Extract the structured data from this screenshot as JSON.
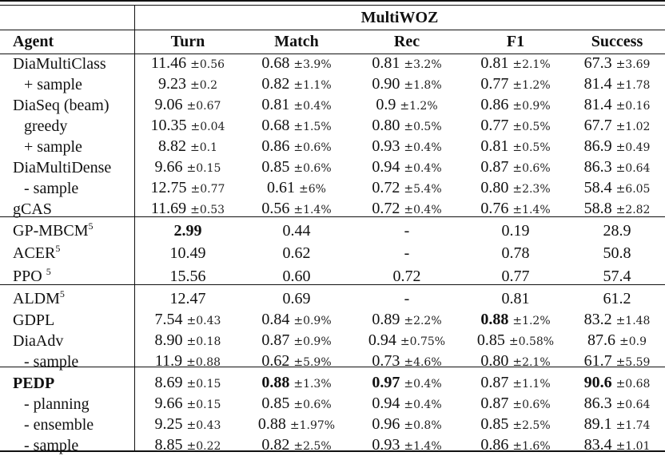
{
  "table": {
    "group_header": "MultiWOZ",
    "columns": [
      "Agent",
      "Turn",
      "Match",
      "Rec",
      "F1",
      "Success"
    ],
    "sections": [
      {
        "rows": [
          {
            "agent": "DiaMultiClass",
            "indent": false,
            "sup": "",
            "cells": [
              {
                "v": "11.46",
                "pm": "±0.56"
              },
              {
                "v": "0.68",
                "pm": "±3.9%"
              },
              {
                "v": "0.81",
                "pm": "±3.2%"
              },
              {
                "v": "0.81",
                "pm": "±2.1%"
              },
              {
                "v": "67.3",
                "pm": "±3.69"
              }
            ]
          },
          {
            "agent": "+ sample",
            "indent": true,
            "sup": "",
            "cells": [
              {
                "v": "9.23",
                "pm": "±0.2"
              },
              {
                "v": "0.82",
                "pm": "±1.1%"
              },
              {
                "v": "0.90",
                "pm": "±1.8%"
              },
              {
                "v": "0.77",
                "pm": "±1.2%"
              },
              {
                "v": "81.4",
                "pm": "±1.78"
              }
            ]
          },
          {
            "agent": "DiaSeq (beam)",
            "indent": false,
            "sup": "",
            "cells": [
              {
                "v": "9.06",
                "pm": "±0.67"
              },
              {
                "v": "0.81",
                "pm": "±0.4%"
              },
              {
                "v": "0.9",
                "pm": "±1.2%"
              },
              {
                "v": "0.86",
                "pm": "±0.9%"
              },
              {
                "v": "81.4",
                "pm": "±0.16"
              }
            ]
          },
          {
            "agent": "greedy",
            "indent": true,
            "sup": "",
            "cells": [
              {
                "v": "10.35",
                "pm": "±0.04"
              },
              {
                "v": "0.68",
                "pm": "±1.5%"
              },
              {
                "v": "0.80",
                "pm": "±0.5%"
              },
              {
                "v": "0.77",
                "pm": "±0.5%"
              },
              {
                "v": "67.7",
                "pm": "±1.02"
              }
            ]
          },
          {
            "agent": "+ sample",
            "indent": true,
            "sup": "",
            "cells": [
              {
                "v": "8.82",
                "pm": "±0.1"
              },
              {
                "v": "0.86",
                "pm": "±0.6%"
              },
              {
                "v": "0.93",
                "pm": "±0.4%"
              },
              {
                "v": "0.81",
                "pm": "±0.5%"
              },
              {
                "v": "86.9",
                "pm": "±0.49"
              }
            ]
          },
          {
            "agent": "DiaMultiDense",
            "indent": false,
            "sup": "",
            "cells": [
              {
                "v": "9.66",
                "pm": "±0.15"
              },
              {
                "v": "0.85",
                "pm": "±0.6%"
              },
              {
                "v": "0.94",
                "pm": "±0.4%"
              },
              {
                "v": "0.87",
                "pm": "±0.6%"
              },
              {
                "v": "86.3",
                "pm": "±0.64"
              }
            ]
          },
          {
            "agent": "- sample",
            "indent": true,
            "sup": "",
            "cells": [
              {
                "v": "12.75",
                "pm": "±0.77"
              },
              {
                "v": "0.61",
                "pm": "±6%"
              },
              {
                "v": "0.72",
                "pm": "±5.4%"
              },
              {
                "v": "0.80",
                "pm": "±2.3%"
              },
              {
                "v": "58.4",
                "pm": "±6.05"
              }
            ]
          },
          {
            "agent": "gCAS",
            "indent": false,
            "sup": "",
            "cells": [
              {
                "v": "11.69",
                "pm": "±0.53"
              },
              {
                "v": "0.56",
                "pm": "±1.4%"
              },
              {
                "v": "0.72",
                "pm": "±0.4%"
              },
              {
                "v": "0.76",
                "pm": "±1.4%"
              },
              {
                "v": "58.8",
                "pm": "±2.82"
              }
            ]
          }
        ]
      },
      {
        "rows": [
          {
            "agent": "GP-MBCM",
            "indent": false,
            "sup": "5",
            "cells": [
              {
                "v": "2.99",
                "pm": "",
                "bold": true
              },
              {
                "v": "0.44",
                "pm": ""
              },
              {
                "v": "-",
                "pm": ""
              },
              {
                "v": "0.19",
                "pm": ""
              },
              {
                "v": "28.9",
                "pm": ""
              }
            ]
          },
          {
            "agent": "ACER",
            "indent": false,
            "sup": "5",
            "cells": [
              {
                "v": "10.49",
                "pm": ""
              },
              {
                "v": "0.62",
                "pm": ""
              },
              {
                "v": "-",
                "pm": ""
              },
              {
                "v": "0.78",
                "pm": ""
              },
              {
                "v": "50.8",
                "pm": ""
              }
            ]
          },
          {
            "agent": "PPO ",
            "indent": false,
            "sup": "5",
            "cells": [
              {
                "v": "15.56",
                "pm": ""
              },
              {
                "v": "0.60",
                "pm": ""
              },
              {
                "v": "0.72",
                "pm": ""
              },
              {
                "v": "0.77",
                "pm": ""
              },
              {
                "v": "57.4",
                "pm": ""
              }
            ]
          }
        ]
      },
      {
        "rows": [
          {
            "agent": "ALDM",
            "indent": false,
            "sup": "5",
            "cells": [
              {
                "v": "12.47",
                "pm": ""
              },
              {
                "v": "0.69",
                "pm": ""
              },
              {
                "v": "-",
                "pm": ""
              },
              {
                "v": "0.81",
                "pm": ""
              },
              {
                "v": "61.2",
                "pm": ""
              }
            ]
          },
          {
            "agent": "GDPL",
            "indent": false,
            "sup": "",
            "cells": [
              {
                "v": "7.54",
                "pm": "±0.43"
              },
              {
                "v": "0.84",
                "pm": "±0.9%"
              },
              {
                "v": "0.89",
                "pm": "±2.2%"
              },
              {
                "v": "0.88",
                "pm": "±1.2%",
                "bold": true
              },
              {
                "v": "83.2",
                "pm": "±1.48"
              }
            ]
          },
          {
            "agent": "DiaAdv",
            "indent": false,
            "sup": "",
            "cells": [
              {
                "v": "8.90",
                "pm": "±0.18"
              },
              {
                "v": "0.87",
                "pm": "±0.9%"
              },
              {
                "v": "0.94",
                "pm": "±0.75%"
              },
              {
                "v": "0.85",
                "pm": "±0.58%"
              },
              {
                "v": "87.6",
                "pm": "±0.9"
              }
            ]
          },
          {
            "agent": "- sample",
            "indent": true,
            "sup": "",
            "cells": [
              {
                "v": "11.9",
                "pm": "±0.88"
              },
              {
                "v": "0.62",
                "pm": "±5.9%"
              },
              {
                "v": "0.73",
                "pm": "±4.6%"
              },
              {
                "v": "0.80",
                "pm": "±2.1%"
              },
              {
                "v": "61.7",
                "pm": "±5.59"
              }
            ]
          }
        ]
      },
      {
        "rows": [
          {
            "agent": "PEDP",
            "indent": false,
            "sup": "",
            "agent_bold": true,
            "cells": [
              {
                "v": "8.69",
                "pm": "±0.15"
              },
              {
                "v": "0.88",
                "pm": "±1.3%",
                "bold": true
              },
              {
                "v": "0.97",
                "pm": "±0.4%",
                "bold": true
              },
              {
                "v": "0.87",
                "pm": "±1.1%"
              },
              {
                "v": "90.6",
                "pm": "±0.68",
                "bold": true
              }
            ]
          },
          {
            "agent": "- planning",
            "indent": true,
            "sup": "",
            "cells": [
              {
                "v": "9.66",
                "pm": "±0.15"
              },
              {
                "v": "0.85",
                "pm": "±0.6%"
              },
              {
                "v": "0.94",
                "pm": "±0.4%"
              },
              {
                "v": "0.87",
                "pm": "±0.6%"
              },
              {
                "v": "86.3",
                "pm": "±0.64"
              }
            ]
          },
          {
            "agent": "- ensemble",
            "indent": true,
            "sup": "",
            "cells": [
              {
                "v": "9.25",
                "pm": "±0.43"
              },
              {
                "v": "0.88",
                "pm": "±1.97%"
              },
              {
                "v": "0.96",
                "pm": "±0.8%"
              },
              {
                "v": "0.85",
                "pm": "±2.5%"
              },
              {
                "v": "89.1",
                "pm": "±1.74"
              }
            ]
          },
          {
            "agent": "- sample",
            "indent": true,
            "sup": "",
            "cells": [
              {
                "v": "8.85",
                "pm": "±0.22"
              },
              {
                "v": "0.82",
                "pm": "±2.5%"
              },
              {
                "v": "0.93",
                "pm": "±1.4%"
              },
              {
                "v": "0.86",
                "pm": "±1.6%"
              },
              {
                "v": "83.4",
                "pm": "±1.01"
              }
            ]
          }
        ]
      }
    ]
  }
}
